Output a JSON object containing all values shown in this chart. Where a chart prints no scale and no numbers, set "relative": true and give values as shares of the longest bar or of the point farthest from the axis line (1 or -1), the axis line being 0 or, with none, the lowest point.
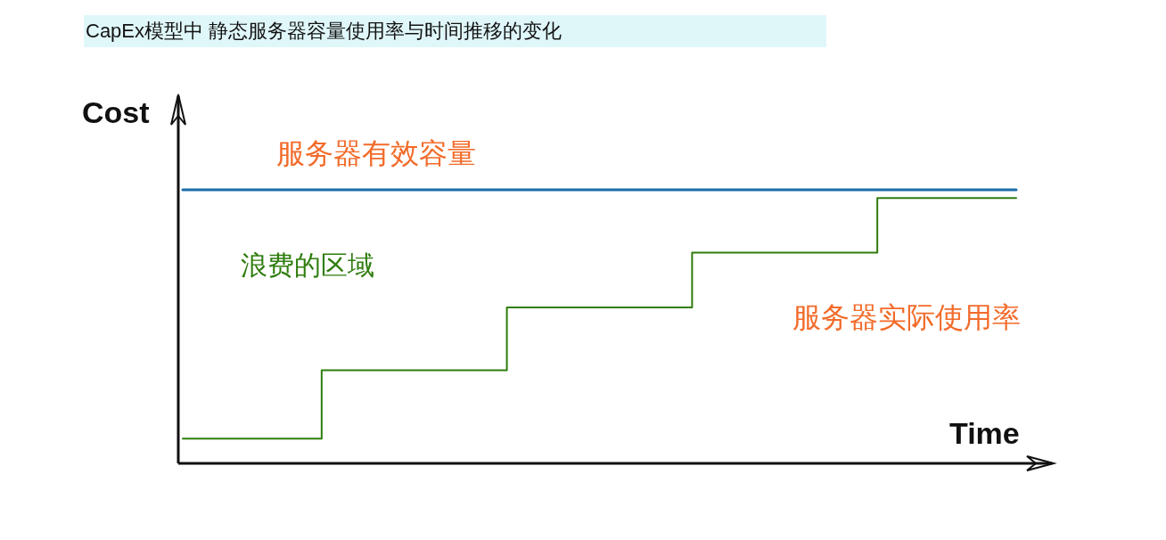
{
  "chart_data": {
    "type": "line",
    "title": "CapEx模型中 静态服务器容量使用率与时间推移的变化",
    "xlabel": "Time",
    "ylabel": "Cost",
    "relative": true,
    "categories": [
      null,
      null,
      null,
      null,
      null,
      null,
      null,
      null,
      null,
      null
    ],
    "series": [
      {
        "name": "服务器有效容量",
        "type": "line",
        "color": "#1b6ca8",
        "values": [
          1,
          1,
          1,
          1,
          1,
          1,
          1,
          1,
          1,
          1
        ]
      },
      {
        "name": "服务器实际使用率",
        "type": "step",
        "color": "#2f7d0e",
        "values": [
          0.09,
          0.09,
          0.34,
          0.34,
          0.57,
          0.57,
          0.77,
          0.77,
          0.97,
          0.97
        ]
      }
    ],
    "annotations": [
      "浪费的区域"
    ]
  }
}
